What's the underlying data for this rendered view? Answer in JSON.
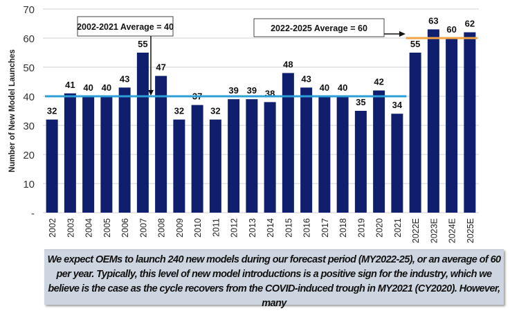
{
  "chart_data": {
    "type": "bar",
    "title": "",
    "xlabel": "",
    "ylabel": "Number of New Model Launches",
    "ylim": [
      0,
      70
    ],
    "yticks": [
      "-",
      "10",
      "20",
      "30",
      "40",
      "50",
      "60",
      "70"
    ],
    "grid": true,
    "categories": [
      "2002",
      "2003",
      "2004",
      "2005",
      "2006",
      "2007",
      "2008",
      "2009",
      "2010",
      "2011",
      "2012",
      "2013",
      "2014",
      "2015",
      "2016",
      "2017",
      "2018",
      "2019",
      "2020",
      "2021",
      "2022E",
      "2023E",
      "2024E",
      "2025E"
    ],
    "values": [
      32,
      41,
      40,
      40,
      43,
      55,
      47,
      32,
      37,
      32,
      39,
      39,
      38,
      48,
      43,
      40,
      40,
      35,
      42,
      34,
      55,
      63,
      60,
      62
    ],
    "bar_color": "#0f1f6e",
    "reference_lines": [
      {
        "label": "2002-2021 Average = 40",
        "value": 40,
        "from": "2002",
        "to": "2021",
        "color": "#2b9fd6"
      },
      {
        "label": "2022-2025 Average = 60",
        "value": 60,
        "from": "2022E",
        "to": "2025E",
        "color": "#f0a347"
      }
    ]
  },
  "caption": "We expect OEMs to launch 240 new models during our forecast period (MY2022-25), or an average of 60 per year. Typically, this level of new model introductions is a positive sign for the industry, which we believe is the case as the cycle recovers from the COVID-induced trough in MY2021 (CY2020). However, many"
}
